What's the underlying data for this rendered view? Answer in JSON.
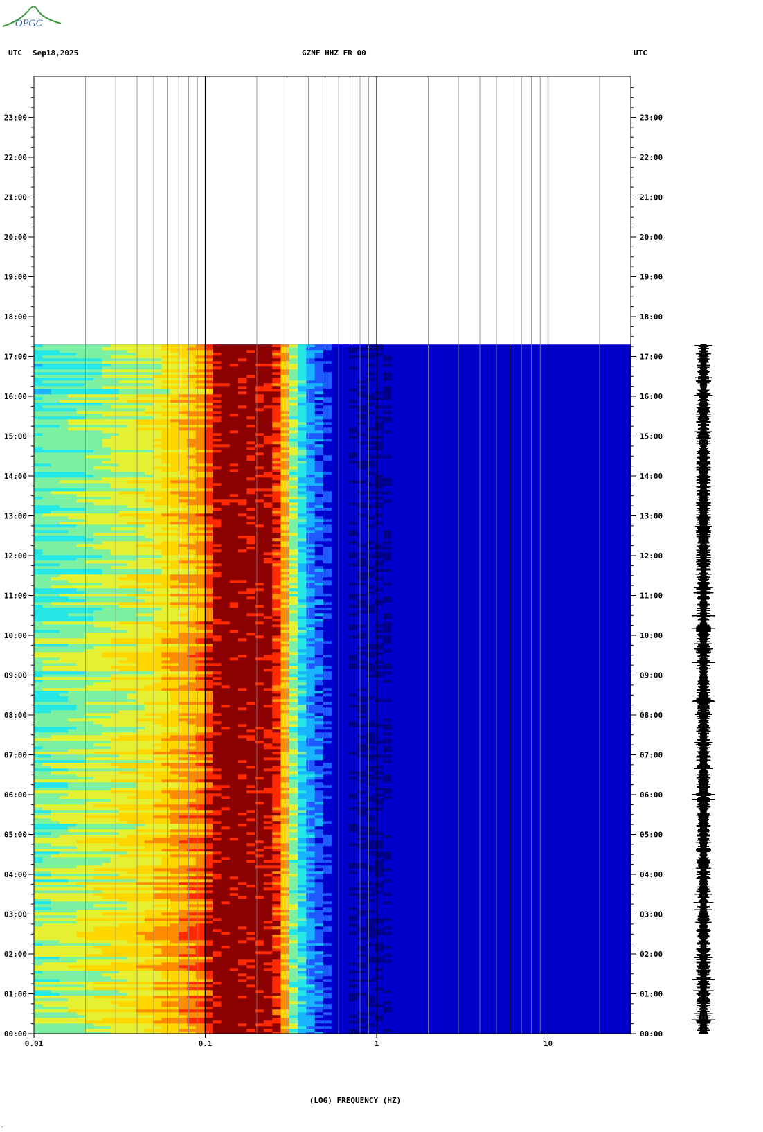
{
  "header": {
    "utc_left": "UTC",
    "date": "Sep18,2025",
    "station": "GZNF HHZ FR 00",
    "utc_right": "UTC"
  },
  "logo": {
    "text": "OPGC"
  },
  "colors": {
    "no_data": "#ffffff",
    "grid_minor": "#888888",
    "grid_major": "#000000",
    "colormap": [
      "#00008b",
      "#0000cd",
      "#1e5aff",
      "#18b4ff",
      "#26e6e6",
      "#7cf0a0",
      "#e6f032",
      "#ffd700",
      "#ff8c00",
      "#ff2a00",
      "#8b0000"
    ]
  },
  "chart_data": {
    "type": "heatmap",
    "title": "GZNF HHZ FR 00",
    "xlabel": "(LOG) FREQUENCY (HZ)",
    "ylabel": "UTC",
    "x_scale": "log",
    "xlim": [
      0.01,
      30
    ],
    "x_ticks": [
      0.01,
      0.1,
      1,
      10
    ],
    "x_tick_labels": [
      "0.01",
      "0.1",
      "1",
      "10"
    ],
    "ylim_hours": [
      0,
      24
    ],
    "y_tick_labels": [
      "00:00",
      "01:00",
      "02:00",
      "03:00",
      "04:00",
      "05:00",
      "06:00",
      "07:00",
      "08:00",
      "09:00",
      "10:00",
      "11:00",
      "12:00",
      "13:00",
      "14:00",
      "15:00",
      "16:00",
      "17:00",
      "18:00",
      "19:00",
      "20:00",
      "21:00",
      "22:00",
      "23:00"
    ],
    "data_end_hour": 17.3,
    "power_profile": [
      {
        "f": 0.01,
        "level": 0.42
      },
      {
        "f": 0.024,
        "level": 0.5
      },
      {
        "f": 0.05,
        "level": 0.58
      },
      {
        "f": 0.072,
        "level": 0.66
      },
      {
        "f": 0.098,
        "level": 0.72
      },
      {
        "f": 0.12,
        "level": 0.98
      },
      {
        "f": 0.24,
        "level": 0.96
      },
      {
        "f": 0.28,
        "level": 0.8
      },
      {
        "f": 0.32,
        "level": 0.55
      },
      {
        "f": 0.4,
        "level": 0.3
      },
      {
        "f": 0.55,
        "level": 0.15
      },
      {
        "f": 1.0,
        "level": 0.05
      },
      {
        "f": 30,
        "level": 0.03
      }
    ],
    "grid": true
  }
}
